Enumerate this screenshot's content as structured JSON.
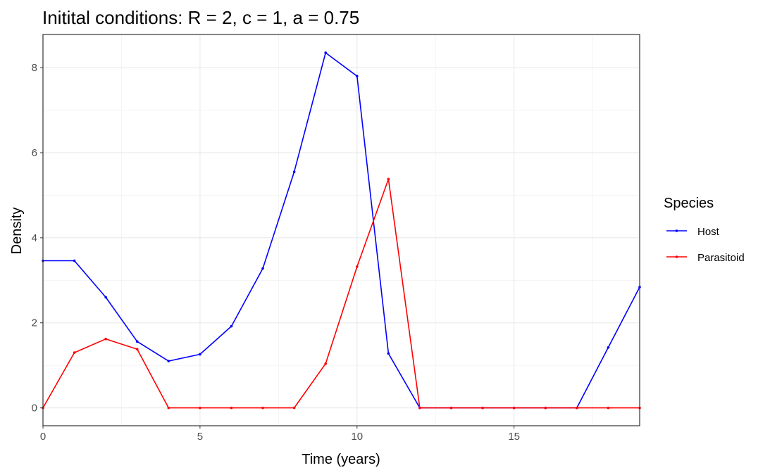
{
  "chart_data": {
    "type": "line",
    "title": "Initital conditions: R = 2, c = 1, a = 0.75",
    "xlabel": "Time (years)",
    "ylabel": "Density",
    "xlim": [
      0,
      19
    ],
    "ylim": [
      -0.42,
      8.78
    ],
    "x_ticks": [
      0,
      5,
      10,
      15
    ],
    "x_tick_labels": [
      "0",
      "5",
      "10",
      "15"
    ],
    "y_ticks": [
      0,
      2,
      4,
      6,
      8
    ],
    "y_tick_labels": [
      "0",
      "2",
      "4",
      "6",
      "8"
    ],
    "grid": true,
    "legend": {
      "title": "Species",
      "position": "right"
    },
    "x": [
      0,
      1,
      2,
      3,
      4,
      5,
      6,
      7,
      8,
      9,
      10,
      11,
      12,
      13,
      14,
      15,
      16,
      17,
      18,
      19
    ],
    "series": [
      {
        "name": "Host",
        "color": "#0000ff",
        "values": [
          3.46,
          3.46,
          2.6,
          1.56,
          1.1,
          1.26,
          1.92,
          3.28,
          5.55,
          8.35,
          7.8,
          1.28,
          0,
          0,
          0,
          0,
          0,
          0,
          1.42,
          2.84
        ]
      },
      {
        "name": "Parasitoid",
        "color": "#ff0000",
        "values": [
          0,
          1.3,
          1.62,
          1.38,
          0,
          0,
          0,
          0,
          0,
          1.04,
          3.32,
          5.38,
          0,
          0,
          0,
          0,
          0,
          0,
          0,
          0
        ]
      }
    ]
  }
}
